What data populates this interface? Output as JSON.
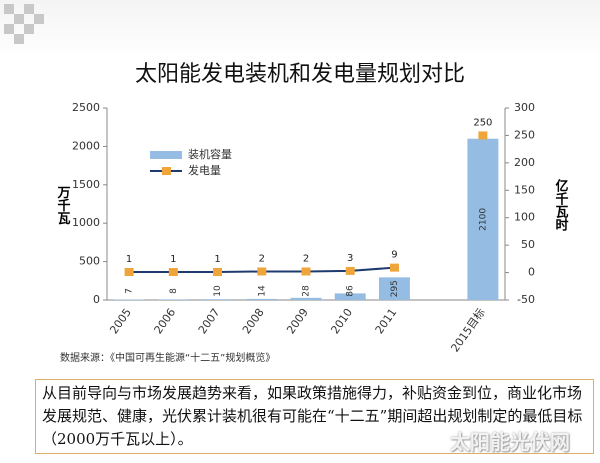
{
  "chart_data": {
    "type": "bar-line",
    "title": "太阳能发电装机和发电量规划对比",
    "categories": [
      "2005",
      "2006",
      "2007",
      "2008",
      "2009",
      "2010",
      "2011",
      null,
      "2015目标"
    ],
    "series": [
      {
        "name": "装机容量",
        "type": "bar",
        "color": "#95bde3",
        "values": [
          7,
          8,
          10,
          14,
          28,
          86,
          295,
          null,
          2100
        ]
      },
      {
        "name": "发电量",
        "type": "line",
        "axis": "y2",
        "color": "#1f3a6e",
        "marker_color": "#f0a53a",
        "values": [
          1,
          1,
          1,
          2,
          2,
          3,
          9,
          null,
          250
        ]
      }
    ],
    "ylabel": "万千瓦",
    "y2label": "亿千瓦时",
    "ylim": [
      0,
      2500
    ],
    "yticks": [
      0,
      500,
      1000,
      1500,
      2000,
      2500
    ],
    "y2lim": [
      -50,
      300
    ],
    "y2ticks": [
      -50,
      0,
      50,
      100,
      150,
      200,
      250,
      300
    ],
    "grid": false,
    "legend": "upper left"
  },
  "source": "数据来源：《中国可再生能源“十二五”规划概览》",
  "text": "从目前导向与市场发展趋势来看，如果政策措施得力，补贴资金到位，商业化市场发展规范、健康，光伏累计装机很有可能在“十二五”期间超出规划制定的最低目标（2000万千瓦以上）。",
  "watermark": "太阳能光伏网"
}
